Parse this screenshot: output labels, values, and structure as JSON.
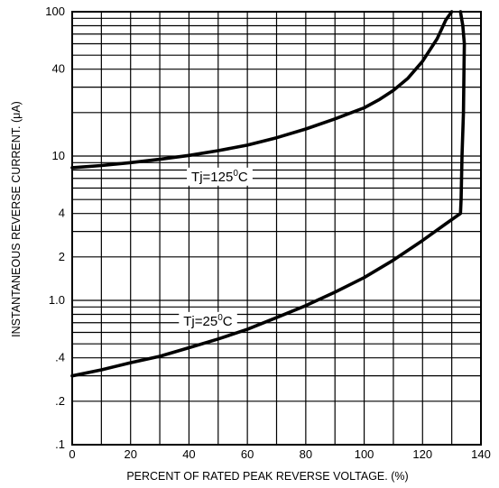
{
  "chart_data": {
    "type": "line",
    "title": "",
    "xlabel": "PERCENT OF RATED PEAK REVERSE VOLTAGE. (%)",
    "ylabel": "INSTANTANEOUS REVERSE CURRENT. (μA)",
    "xlim": [
      0,
      140
    ],
    "ylim": [
      0.1,
      100
    ],
    "yscale": "log",
    "grid": true,
    "x_ticks": [
      {
        "value": 0,
        "label": "0"
      },
      {
        "value": 20,
        "label": "20"
      },
      {
        "value": 40,
        "label": "40"
      },
      {
        "value": 60,
        "label": "60"
      },
      {
        "value": 80,
        "label": "80"
      },
      {
        "value": 100,
        "label": "100"
      },
      {
        "value": 120,
        "label": "120"
      },
      {
        "value": 140,
        "label": "140"
      }
    ],
    "y_ticks": [
      {
        "value": 0.1,
        "label": ".1"
      },
      {
        "value": 0.2,
        "label": ".2"
      },
      {
        "value": 0.4,
        "label": ".4"
      },
      {
        "value": 1,
        "label": "1.0"
      },
      {
        "value": 2,
        "label": "2"
      },
      {
        "value": 4,
        "label": "4"
      },
      {
        "value": 10,
        "label": "10"
      },
      {
        "value": 40,
        "label": "40"
      },
      {
        "value": 100,
        "label": "100"
      }
    ],
    "series": [
      {
        "name": "Tj=125°C",
        "x": [
          0,
          10,
          20,
          30,
          40,
          50,
          60,
          70,
          80,
          90,
          100,
          105,
          110,
          115,
          120,
          125,
          128,
          130
        ],
        "y": [
          8.3,
          8.6,
          9.0,
          9.5,
          10.1,
          10.9,
          11.9,
          13.4,
          15.4,
          18.1,
          21.6,
          24.5,
          28.5,
          34.6,
          45.4,
          65,
          88,
          100
        ]
      },
      {
        "name": "Tj=25°C",
        "x": [
          0,
          10,
          20,
          30,
          40,
          50,
          60,
          70,
          80,
          90,
          100,
          110,
          120,
          128,
          133,
          133.2,
          133.5,
          134,
          134.2,
          134.3,
          133.8,
          133
        ],
        "y": [
          0.3,
          0.33,
          0.37,
          0.41,
          0.47,
          0.54,
          0.63,
          0.76,
          0.92,
          1.14,
          1.44,
          1.9,
          2.6,
          3.4,
          4.0,
          5,
          10,
          20,
          40,
          60,
          80,
          100
        ]
      }
    ],
    "annotations": [
      {
        "text": "Tj=125",
        "sup": "0",
        "unit": "C",
        "x": 50.5,
        "y": 7.2
      },
      {
        "text": "Tj=25",
        "sup": "0",
        "unit": "C",
        "x": 46.5,
        "y": 0.72
      }
    ]
  }
}
